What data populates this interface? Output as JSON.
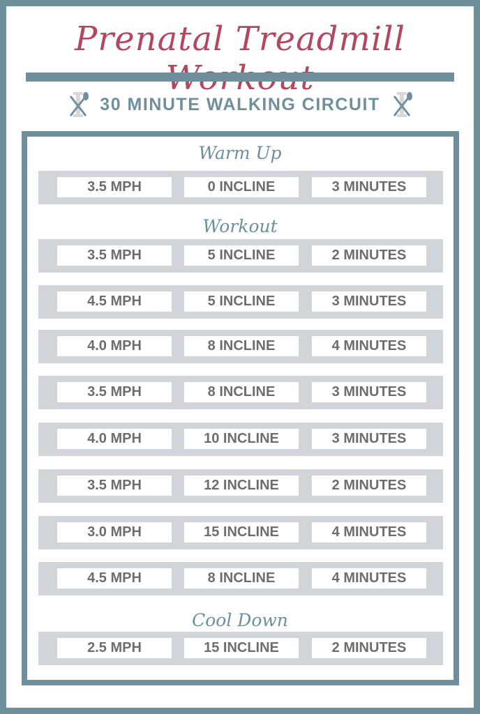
{
  "title": "Prenatal Treadmill Workout",
  "subtitle": "30 MINUTE WALKING CIRCUIT",
  "icons": [
    "fork-spoon-dumbbell-icon"
  ],
  "colors": {
    "accent": "#6f8f9c",
    "title": "#b4465f",
    "row": "#d1d4d9",
    "text": "#6d6d6d"
  },
  "sections": [
    {
      "label": "Warm Up",
      "rows": [
        [
          "3.5 MPH",
          "0 INCLINE",
          "3 MINUTES"
        ]
      ]
    },
    {
      "label": "Workout",
      "rows": [
        [
          "3.5 MPH",
          "5 INCLINE",
          "2 MINUTES"
        ],
        [
          "4.5 MPH",
          "5 INCLINE",
          "3 MINUTES"
        ],
        [
          "4.0 MPH",
          "8 INCLINE",
          "4 MINUTES"
        ],
        [
          "3.5 MPH",
          "8 INCLINE",
          "3 MINUTES"
        ],
        [
          "4.0 MPH",
          "10 INCLINE",
          "3 MINUTES"
        ],
        [
          "3.5 MPH",
          "12 INCLINE",
          "2 MINUTES"
        ],
        [
          "3.0 MPH",
          "15 INCLINE",
          "4 MINUTES"
        ],
        [
          "4.5 MPH",
          "8 INCLINE",
          "4 MINUTES"
        ]
      ]
    },
    {
      "label": "Cool Down",
      "rows": [
        [
          "2.5 MPH",
          "15 INCLINE",
          "2 MINUTES"
        ]
      ]
    }
  ]
}
